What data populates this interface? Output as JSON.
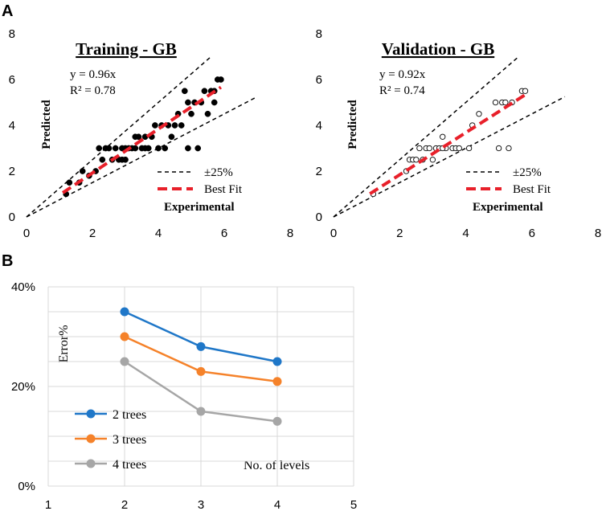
{
  "panel_labels": {
    "a": "A",
    "b": "B"
  },
  "colors": {
    "scatter_fill": "#000000",
    "best_fit": "#e8202a",
    "bound": "#000000",
    "trees2": "#1f77c8",
    "trees3": "#f5822a",
    "trees4": "#a6a6a6",
    "grid": "#d9d9d9"
  },
  "chart_data": [
    {
      "type": "scatter",
      "id": "training",
      "title": "Training - GB",
      "xlabel": "Experimental",
      "ylabel": "Predicted",
      "xlim": [
        0,
        8
      ],
      "ylim": [
        0,
        8
      ],
      "xticks": [
        "0",
        "2",
        "4",
        "6",
        "8"
      ],
      "yticks": [
        "0",
        "2",
        "4",
        "6",
        "8"
      ],
      "equation": "y = 0.96x",
      "r2": "R² = 0.78",
      "slope": 0.96,
      "best_fit_range": [
        1.1,
        5.9
      ],
      "bound_factors": [
        1.25,
        0.75
      ],
      "bound_range": [
        0,
        7
      ],
      "legend": {
        "bounds": "±25%",
        "fit": "Best Fit"
      },
      "marker": "filled",
      "points": [
        [
          1.2,
          1.0
        ],
        [
          1.3,
          1.5
        ],
        [
          1.6,
          1.5
        ],
        [
          1.7,
          2.0
        ],
        [
          1.9,
          1.8
        ],
        [
          2.1,
          2.0
        ],
        [
          2.3,
          2.5
        ],
        [
          2.4,
          3.0
        ],
        [
          2.6,
          2.5
        ],
        [
          2.7,
          3.0
        ],
        [
          2.8,
          2.5
        ],
        [
          2.9,
          3.0
        ],
        [
          3.0,
          3.0
        ],
        [
          3.1,
          3.0
        ],
        [
          3.2,
          3.0
        ],
        [
          3.3,
          3.0
        ],
        [
          3.4,
          3.5
        ],
        [
          3.5,
          3.0
        ],
        [
          3.6,
          3.5
        ],
        [
          3.7,
          3.0
        ],
        [
          3.8,
          3.5
        ],
        [
          3.9,
          4.0
        ],
        [
          4.0,
          3.0
        ],
        [
          4.1,
          4.0
        ],
        [
          4.2,
          3.0
        ],
        [
          4.3,
          4.0
        ],
        [
          4.4,
          3.5
        ],
        [
          4.5,
          4.0
        ],
        [
          4.6,
          4.5
        ],
        [
          4.7,
          4.0
        ],
        [
          4.8,
          5.5
        ],
        [
          4.9,
          5.0
        ],
        [
          5.0,
          4.5
        ],
        [
          5.1,
          5.0
        ],
        [
          5.2,
          3.0
        ],
        [
          5.3,
          5.0
        ],
        [
          5.4,
          5.5
        ],
        [
          5.5,
          4.5
        ],
        [
          5.6,
          5.5
        ],
        [
          5.7,
          5.0
        ],
        [
          5.8,
          6.0
        ],
        [
          5.9,
          6.0
        ],
        [
          2.5,
          3.0
        ],
        [
          3.0,
          2.5
        ],
        [
          2.2,
          3.0
        ],
        [
          3.3,
          3.5
        ],
        [
          3.6,
          3.0
        ],
        [
          4.9,
          3.0
        ],
        [
          5.7,
          5.5
        ],
        [
          2.9,
          2.5
        ]
      ]
    },
    {
      "type": "scatter",
      "id": "validation",
      "title": "Validation - GB",
      "xlabel": "Experimental",
      "ylabel": "Predicted",
      "xlim": [
        0,
        8
      ],
      "ylim": [
        0,
        8
      ],
      "xticks": [
        "0",
        "2",
        "4",
        "6",
        "8"
      ],
      "yticks": [
        "0",
        "2",
        "4",
        "6",
        "8"
      ],
      "equation": "y = 0.92x",
      "r2": "R² = 0.74",
      "slope": 0.92,
      "best_fit_range": [
        1.1,
        5.8
      ],
      "bound_factors": [
        1.25,
        0.75
      ],
      "bound_range": [
        0,
        7
      ],
      "legend": {
        "bounds": "±25%",
        "fit": "Best Fit"
      },
      "marker": "open",
      "points": [
        [
          1.2,
          1.0
        ],
        [
          2.2,
          2.0
        ],
        [
          2.3,
          2.5
        ],
        [
          2.4,
          2.5
        ],
        [
          2.6,
          3.0
        ],
        [
          2.7,
          2.5
        ],
        [
          2.8,
          3.0
        ],
        [
          2.9,
          3.0
        ],
        [
          3.0,
          2.5
        ],
        [
          3.1,
          3.0
        ],
        [
          3.2,
          3.0
        ],
        [
          3.3,
          3.5
        ],
        [
          3.4,
          3.0
        ],
        [
          3.6,
          3.0
        ],
        [
          3.7,
          3.0
        ],
        [
          3.8,
          3.0
        ],
        [
          4.1,
          3.0
        ],
        [
          4.2,
          4.0
        ],
        [
          4.4,
          4.5
        ],
        [
          4.9,
          5.0
        ],
        [
          5.0,
          3.0
        ],
        [
          5.1,
          5.0
        ],
        [
          5.2,
          5.0
        ],
        [
          5.3,
          3.0
        ],
        [
          5.4,
          5.0
        ],
        [
          5.7,
          5.5
        ],
        [
          5.8,
          5.5
        ],
        [
          3.3,
          3.0
        ],
        [
          2.5,
          2.5
        ]
      ]
    },
    {
      "type": "line",
      "id": "error",
      "ylabel": "Error%",
      "xlabel": "No. of levels",
      "xlim": [
        1,
        5
      ],
      "ylim": [
        0,
        40
      ],
      "xticks": [
        "1",
        "2",
        "3",
        "4",
        "5"
      ],
      "yticks": [
        "0%",
        "20%",
        "40%"
      ],
      "x": [
        2,
        3,
        4
      ],
      "series": [
        {
          "name": "2 trees",
          "values": [
            35,
            28,
            25
          ]
        },
        {
          "name": "3 trees",
          "values": [
            30,
            23,
            21
          ]
        },
        {
          "name": "4 trees",
          "values": [
            25,
            15,
            13
          ]
        }
      ]
    }
  ]
}
